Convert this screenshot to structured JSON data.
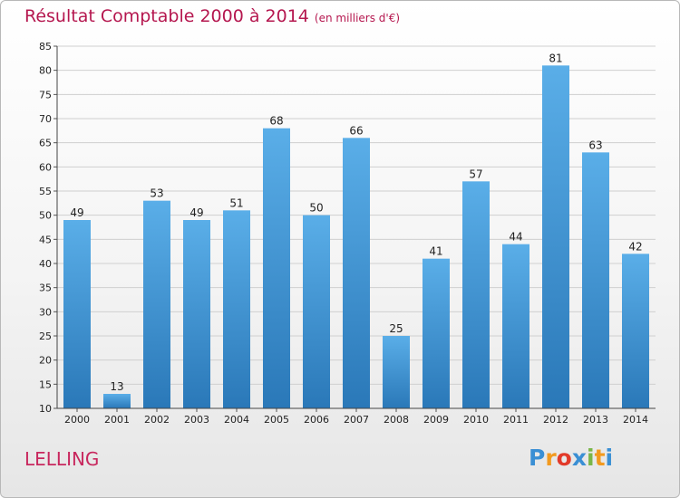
{
  "chart_data": {
    "type": "bar",
    "title": "Résultat Comptable 2000 à 2014",
    "subtitle": "(en milliers d'€)",
    "xlabel": "",
    "ylabel": "",
    "categories": [
      "2000",
      "2001",
      "2002",
      "2003",
      "2004",
      "2005",
      "2006",
      "2007",
      "2008",
      "2009",
      "2010",
      "2011",
      "2012",
      "2013",
      "2014"
    ],
    "values": [
      49,
      13,
      53,
      49,
      51,
      68,
      50,
      66,
      25,
      41,
      57,
      44,
      81,
      63,
      42
    ],
    "ylim": [
      10,
      85
    ],
    "yticks": [
      10,
      15,
      20,
      25,
      30,
      35,
      40,
      45,
      50,
      55,
      60,
      65,
      70,
      75,
      80,
      85
    ],
    "grid": true,
    "legend": "none",
    "bar_color_top": "#5aaee8",
    "bar_color_bottom": "#2a78b8"
  },
  "footer": {
    "town": "LELLING",
    "logo_letters": [
      "P",
      "r",
      "o",
      "x",
      "i",
      "t",
      "i"
    ],
    "logo_colors": [
      "#3a8fd4",
      "#f29a1f",
      "#e23a2a",
      "#3a8fd4",
      "#7ab648",
      "#f29a1f",
      "#3a8fd4"
    ]
  }
}
